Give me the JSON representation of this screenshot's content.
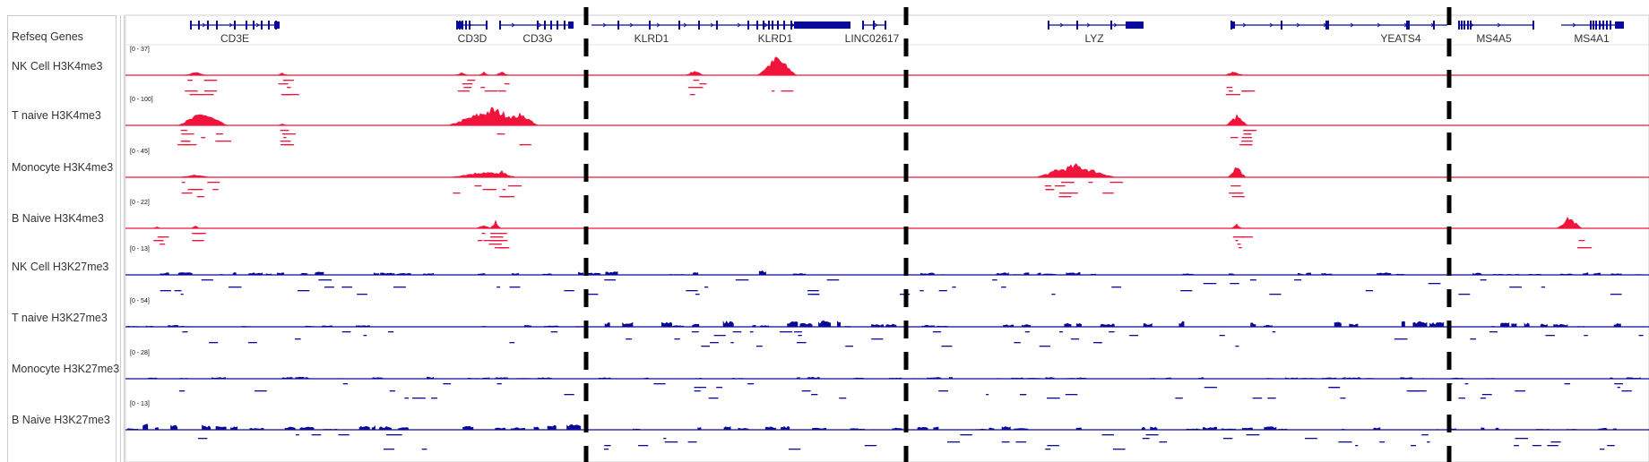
{
  "tracks": {
    "refseq_label": "Refseq Genes",
    "items": [
      {
        "label": "NK Cell H3K4me3",
        "scale": "[0 - 37]",
        "mark": "H3K4me3"
      },
      {
        "label": "T naive H3K4me3",
        "scale": "[0 - 100]",
        "mark": "H3K4me3"
      },
      {
        "label": "Monocyte H3K4me3",
        "scale": "[0 - 45]",
        "mark": "H3K4me3"
      },
      {
        "label": "B Naive H3K4me3",
        "scale": "[0 - 22]",
        "mark": "H3K4me3"
      },
      {
        "label": "NK Cell H3K27me3",
        "scale": "[0 - 13]",
        "mark": "H3K27me3"
      },
      {
        "label": "T naive H3K27me3",
        "scale": "[0 - 54]",
        "mark": "H3K27me3"
      },
      {
        "label": "Monocyte H3K27me3",
        "scale": "[0 - 28]",
        "mark": "H3K27me3"
      },
      {
        "label": "B Naive H3K27me3",
        "scale": "[0 - 13]",
        "mark": "H3K27me3"
      }
    ]
  },
  "genes": [
    "CD3E",
    "CD3D",
    "CD3G",
    "KLRD1",
    "KLRD1",
    "LINC02617",
    "LYZ",
    "YEATS4",
    "MS4A5",
    "MS4A1"
  ],
  "colors": {
    "H3K4me3": "#f0143c",
    "H3K27me3": "#0a0a96",
    "gene": "#0a0a9a",
    "separator": "#000000"
  }
}
